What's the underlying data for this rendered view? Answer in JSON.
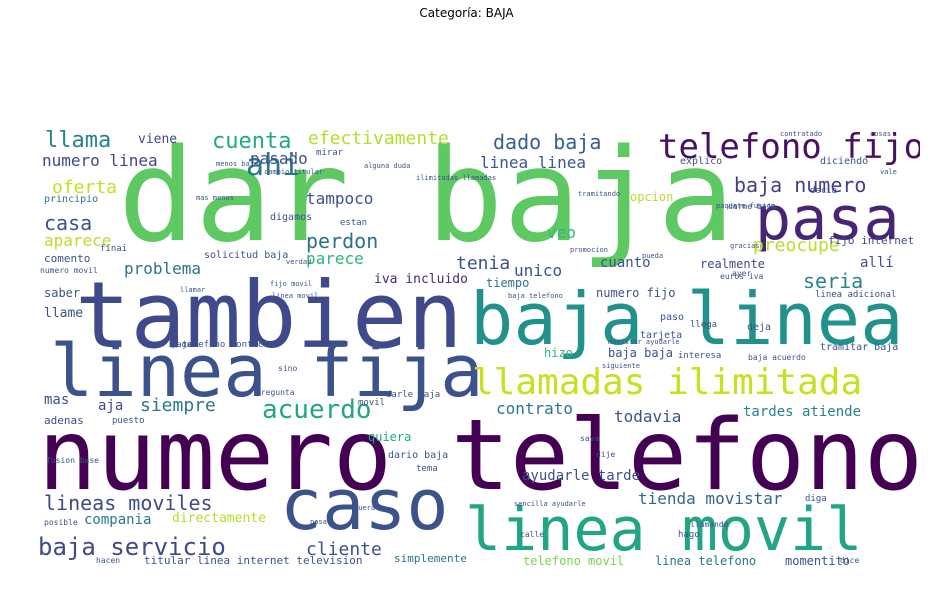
{
  "title": "Categoría: BAJA",
  "palette": [
    "#440154",
    "#482878",
    "#3e4a89",
    "#31688e",
    "#26828e",
    "#1f9e89",
    "#35b779",
    "#6ece58",
    "#b5de2b",
    "#fde725"
  ],
  "words": [
    {
      "text": "dar baja",
      "color": "#5ec962"
    },
    {
      "text": "numero telefono",
      "color": "#440154"
    },
    {
      "text": "tambien",
      "color": "#3e4a89"
    },
    {
      "text": "baja linea",
      "color": "#21918c"
    },
    {
      "text": "linea fija",
      "color": "#3b528b"
    },
    {
      "text": "linea movil",
      "color": "#21a585"
    },
    {
      "text": "caso",
      "color": "#3b528b"
    },
    {
      "text": "pasa",
      "color": "#482475"
    },
    {
      "text": "telefono fijo",
      "color": "#471164"
    },
    {
      "text": "llamadas ilimitada",
      "color": "#c8e020"
    },
    {
      "text": "ahi",
      "color": "#2a788e"
    },
    {
      "text": "acuerdo",
      "color": "#21a585"
    },
    {
      "text": "llama",
      "color": "#26828e"
    },
    {
      "text": "cuenta",
      "color": "#22a884"
    },
    {
      "text": "efectivamente",
      "color": "#b5de2b"
    },
    {
      "text": "dado baja",
      "color": "#355f8d"
    },
    {
      "text": "baja numero",
      "color": "#433e85"
    },
    {
      "text": "numero linea",
      "color": "#404688"
    },
    {
      "text": "pasado",
      "color": "#3b528b"
    },
    {
      "text": "linea linea",
      "color": "#375a8c"
    },
    {
      "text": "oferta",
      "color": "#c8e020"
    },
    {
      "text": "casa",
      "color": "#3b528b"
    },
    {
      "text": "tampoco",
      "color": "#3b528b"
    },
    {
      "text": "perdon",
      "color": "#2c728e"
    },
    {
      "text": "preocupe",
      "color": "#b8de29"
    },
    {
      "text": "aparece",
      "color": "#b5de2b"
    },
    {
      "text": "parece",
      "color": "#2fb47c"
    },
    {
      "text": "tenia",
      "color": "#3b528b"
    },
    {
      "text": "seria",
      "color": "#25858e"
    },
    {
      "text": "problema",
      "color": "#2c728e"
    },
    {
      "text": "cuanto",
      "color": "#3b528b"
    },
    {
      "text": "realmente",
      "color": "#3e4a89"
    },
    {
      "text": "unico",
      "color": "#3b528b"
    },
    {
      "text": "allí",
      "color": "#3b528b"
    },
    {
      "text": "iva incluido",
      "color": "#482878"
    },
    {
      "text": "tiempo",
      "color": "#2c728e"
    },
    {
      "text": "numero fijo",
      "color": "#3b528b"
    },
    {
      "text": "siempre",
      "color": "#2a788e"
    },
    {
      "text": "aja",
      "color": "#3e4a89"
    },
    {
      "text": "mas",
      "color": "#3b528b"
    },
    {
      "text": "contrato",
      "color": "#2a788e"
    },
    {
      "text": "todavia",
      "color": "#3b528b"
    },
    {
      "text": "tardes atiende",
      "color": "#26828e"
    },
    {
      "text": "lineas moviles",
      "color": "#3e4a89"
    },
    {
      "text": "ayudarle tarde",
      "color": "#3b528b"
    },
    {
      "text": "tienda movistar",
      "color": "#31688e"
    },
    {
      "text": "compania",
      "color": "#2a788e"
    },
    {
      "text": "directamente",
      "color": "#b5de2b"
    },
    {
      "text": "baja servicio",
      "color": "#3e4a89"
    },
    {
      "text": "cliente",
      "color": "#3b528b"
    },
    {
      "text": "momentito",
      "color": "#3b528b"
    },
    {
      "text": "telefono movil",
      "color": "#7ad151"
    },
    {
      "text": "linea telefono",
      "color": "#2c728e"
    },
    {
      "text": "quiera",
      "color": "#22a884"
    },
    {
      "text": "adenas",
      "color": "#3b528b"
    },
    {
      "text": "llame",
      "color": "#3b528b"
    },
    {
      "text": "saber",
      "color": "#3b528b"
    },
    {
      "text": "comento",
      "color": "#3b528b"
    },
    {
      "text": "veo",
      "color": "#35b779"
    },
    {
      "text": "opcion",
      "color": "#b5de2b"
    },
    {
      "text": "viene",
      "color": "#3e4a89"
    },
    {
      "text": "fijo internet",
      "color": "#3e4a89"
    },
    {
      "text": "hizo",
      "color": "#2fb47c"
    },
    {
      "text": "baja baja",
      "color": "#3b528b"
    },
    {
      "text": "simplemente",
      "color": "#2c728e"
    },
    {
      "text": "titular linea internet television",
      "color": "#3b528b"
    },
    {
      "text": "dario baja",
      "color": "#3b528b"
    },
    {
      "text": "darle baja",
      "color": "#3b528b"
    },
    {
      "text": "principio",
      "color": "#2c728e"
    },
    {
      "text": "digamos",
      "color": "#3b528b"
    },
    {
      "text": "solicitud baja",
      "color": "#3b528b"
    },
    {
      "text": "numero movil",
      "color": "#3b528b"
    },
    {
      "text": "finai",
      "color": "#3b528b"
    },
    {
      "text": "paso",
      "color": "#3b528b"
    },
    {
      "text": "tarjeta",
      "color": "#3b528b"
    },
    {
      "text": "deja",
      "color": "#3b528b"
    },
    {
      "text": "llega",
      "color": "#3b528b"
    },
    {
      "text": "tramitar baja",
      "color": "#3b528b"
    },
    {
      "text": "baja acuerdo",
      "color": "#3b528b"
    },
    {
      "text": "interesa",
      "color": "#3b528b"
    },
    {
      "text": "telefono contacto",
      "color": "#3b528b"
    },
    {
      "text": "linea adicional",
      "color": "#3b528b"
    },
    {
      "text": "explico",
      "color": "#3b528b"
    },
    {
      "text": "diciendo",
      "color": "#3b528b"
    },
    {
      "text": "decia",
      "color": "#3b528b"
    },
    {
      "text": "mirar",
      "color": "#3b528b"
    },
    {
      "text": "estan",
      "color": "#3b528b"
    },
    {
      "text": "hago",
      "color": "#3b528b"
    },
    {
      "text": "diga",
      "color": "#3b528b"
    },
    {
      "text": "llamando",
      "color": "#3b528b"
    },
    {
      "text": "pagar",
      "color": "#3b528b"
    },
    {
      "text": "puesto",
      "color": "#3b528b"
    },
    {
      "text": "sino",
      "color": "#3b528b"
    },
    {
      "text": "pregunta",
      "color": "#3b528b"
    },
    {
      "text": "posible",
      "color": "#3b528b"
    },
    {
      "text": "fusion base",
      "color": "#3b528b"
    },
    {
      "text": "movil",
      "color": "#3b528b"
    },
    {
      "text": "saya",
      "color": "#3b528b"
    },
    {
      "text": "dije",
      "color": "#3b528b"
    },
    {
      "text": "tema",
      "color": "#3b528b"
    },
    {
      "text": "calle",
      "color": "#3b528b"
    },
    {
      "text": "hacen",
      "color": "#3b528b"
    },
    {
      "text": "ayer",
      "color": "#3b528b"
    },
    {
      "text": "dice",
      "color": "#3b528b"
    },
    {
      "text": "movistar ayudarle",
      "color": "#3b528b"
    },
    {
      "text": "siguiente",
      "color": "#3b528b"
    },
    {
      "text": "alguna duda",
      "color": "#3b528b"
    },
    {
      "text": "menos baja",
      "color": "#3b528b"
    },
    {
      "text": "cambio titular",
      "color": "#3b528b"
    },
    {
      "text": "paquete fusion",
      "color": "#3b528b"
    },
    {
      "text": "darme baja",
      "color": "#3b528b"
    },
    {
      "text": "ilimitadas llamadas",
      "color": "#3b528b"
    },
    {
      "text": "fijo movil",
      "color": "#3b528b"
    },
    {
      "text": "linea movil",
      "color": "#3b528b"
    },
    {
      "text": "euros iva",
      "color": "#3b528b"
    },
    {
      "text": "baja telefono",
      "color": "#3b528b"
    },
    {
      "text": "sencilla ayudarle",
      "color": "#3b528b"
    },
    {
      "text": "tramitando",
      "color": "#3b528b"
    },
    {
      "text": "promocion",
      "color": "#3b528b"
    },
    {
      "text": "contratado",
      "color": "#3b528b"
    },
    {
      "text": "cosas",
      "color": "#3b528b"
    },
    {
      "text": "mas menos",
      "color": "#3b528b"
    },
    {
      "text": "verdad",
      "color": "#3b528b"
    },
    {
      "text": "pueda",
      "color": "#3b528b"
    },
    {
      "text": "pasar",
      "color": "#3b528b"
    },
    {
      "text": "fuera",
      "color": "#3b528b"
    },
    {
      "text": "llamar",
      "color": "#3b528b"
    },
    {
      "text": "gracias",
      "color": "#3b528b"
    },
    {
      "text": "vale",
      "color": "#3b528b"
    }
  ]
}
